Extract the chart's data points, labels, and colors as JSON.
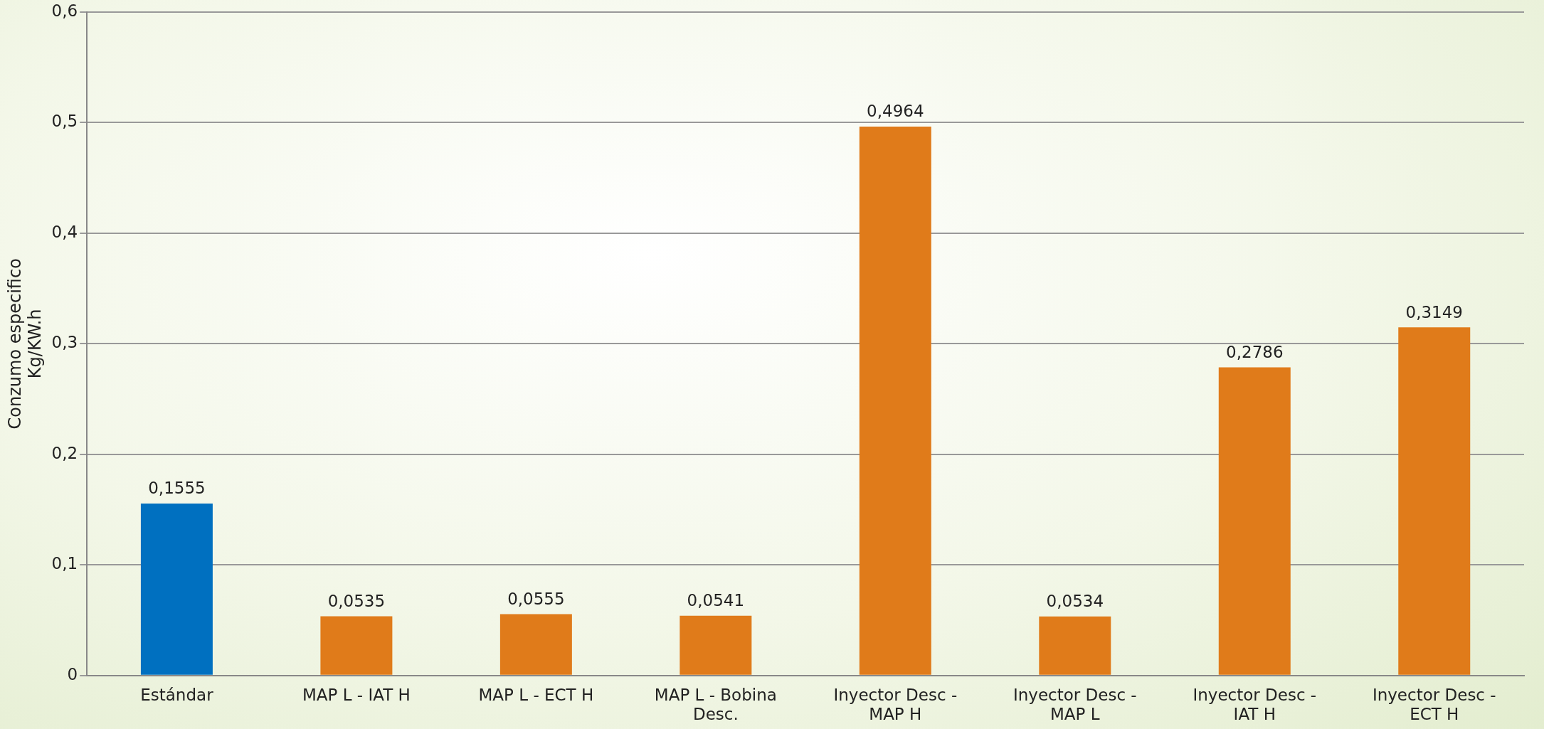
{
  "chart_data": {
    "type": "bar",
    "ylabel": "Conzumo especifico Kg/KW.h",
    "categories": [
      "Estándar",
      "MAP L - IAT H",
      "MAP L - ECT H",
      "MAP L - Bobina Desc.",
      "Inyector Desc - MAP H",
      "Inyector Desc - MAP L",
      "Inyector Desc - IAT H",
      "Inyector Desc - ECT H"
    ],
    "values": [
      0.1555,
      0.0535,
      0.0555,
      0.0541,
      0.4964,
      0.0534,
      0.2786,
      0.3149
    ],
    "value_labels": [
      "0,1555",
      "0,0535",
      "0,0555",
      "0,0541",
      "0,4964",
      "0,0534",
      "0,2786",
      "0,3149"
    ],
    "colors": [
      "#0070c0",
      "#e07b1a",
      "#e07b1a",
      "#e07b1a",
      "#e07b1a",
      "#e07b1a",
      "#e07b1a",
      "#e07b1a"
    ],
    "ylim": [
      0,
      0.6
    ],
    "yticks": [
      {
        "value": 0,
        "label": "0"
      },
      {
        "value": 0.1,
        "label": "0,1"
      },
      {
        "value": 0.2,
        "label": "0,2"
      },
      {
        "value": 0.3,
        "label": "0,3"
      },
      {
        "value": 0.4,
        "label": "0,4"
      },
      {
        "value": 0.5,
        "label": "0,5"
      },
      {
        "value": 0.6,
        "label": "0,6"
      }
    ],
    "grid": "y",
    "legend": false
  }
}
